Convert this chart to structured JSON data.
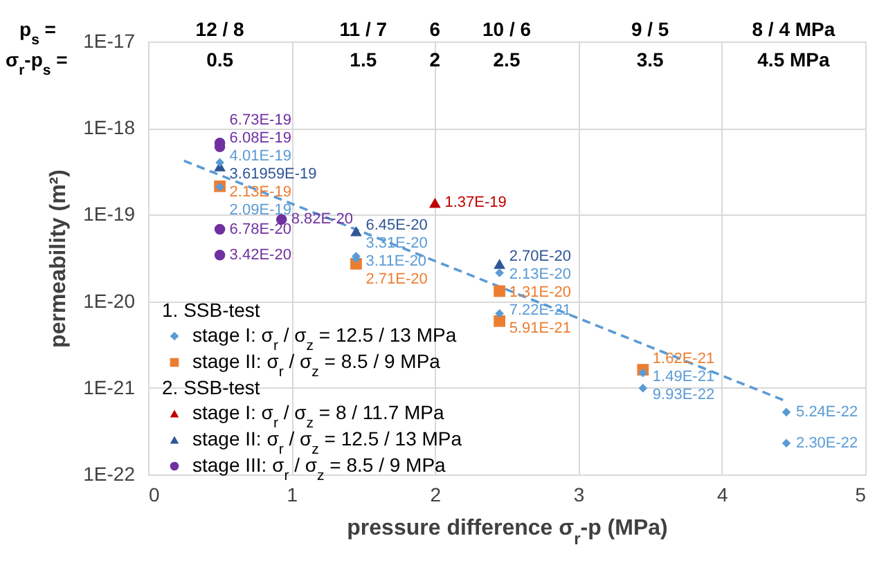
{
  "chart_data": {
    "type": "scatter",
    "xlabel": "pressure difference σ$_{r}$-p (MPa)",
    "ylabel": "permeability (m²)",
    "xlim": [
      0,
      5
    ],
    "xticks": [
      0,
      1,
      2,
      3,
      4,
      5
    ],
    "ylim": [
      1e-22,
      1e-17
    ],
    "yticks": [
      {
        "value": 1e-22,
        "label": "1E-22"
      },
      {
        "value": 1e-21,
        "label": "1E-21"
      },
      {
        "value": 1e-20,
        "label": "1E-20"
      },
      {
        "value": 1e-19,
        "label": "1E-19"
      },
      {
        "value": 1e-18,
        "label": "1E-18"
      },
      {
        "value": 1e-17,
        "label": "1E-17"
      }
    ],
    "log": "y",
    "grid": true,
    "legend": "bottom left",
    "annotations": [
      "p$_{s}$ =",
      "12 / 8",
      "11 / 7",
      "6",
      "10 / 6",
      "9 / 5",
      "8 / 4 MPa",
      "σ$_{r}$-p$_{s}$ =",
      "0.5",
      "1.5",
      "2",
      "2.5",
      "3.5",
      "4.5  MPa",
      "1. SSB-test",
      "2. SSB-test"
    ],
    "series": [
      {
        "name": "stage I:   σ$_{r}$ / σ$_{z}$ = 12.5 / 13 MPa",
        "color": "#5b9bd5",
        "marker": "diamond",
        "x": [
          0.5,
          0.5,
          1.45,
          1.45,
          2.45,
          2.45,
          3.45,
          3.45,
          4.45,
          4.45
        ],
        "values": [
          4.01e-19,
          2.09e-19,
          3.31e-20,
          3.11e-20,
          2.13e-20,
          7.22e-21,
          1.49e-21,
          9.93e-22,
          5.24e-22,
          2.3e-22
        ],
        "value_labels": [
          "4.01E-19",
          "2.09E-19",
          "3.31E-20",
          "3.11E-20",
          "2.13E-20",
          "7.22E-21",
          "1.49E-21",
          "9.93E-22",
          "5.24E-22",
          "2.30E-22"
        ]
      },
      {
        "name": "stage II:  σ$_{r}$ / σ$_{z}$ =   8.5 / 9   MPa",
        "color": "#ed7d31",
        "marker": "square",
        "x": [
          0.5,
          1.45,
          2.45,
          2.45,
          3.45
        ],
        "values": [
          2.13e-19,
          2.71e-20,
          1.31e-20,
          5.91e-21,
          1.62e-21
        ],
        "value_labels": [
          "2.13E-19",
          "2.71E-20",
          "1.31E-20",
          "5.91E-21",
          "1.62E-21"
        ]
      },
      {
        "name": "stage I:   σ$_{r}$ / σ$_{z}$ = 8 / 11.7     MPa",
        "color": "#c00000",
        "marker": "triangle",
        "x": [
          2
        ],
        "values": [
          1.37e-19
        ],
        "value_labels": [
          "1.37E-19"
        ]
      },
      {
        "name": "stage II:  σ$_{r}$ / σ$_{z}$ = 12.5 / 13  MPa",
        "color": "#2f5597",
        "marker": "triangle",
        "x": [
          0.5,
          1.45,
          2.45
        ],
        "values": [
          3.61959e-19,
          6.45e-20,
          2.7e-20
        ],
        "value_labels": [
          "3.61959E-19",
          "6.45E-20",
          "2.70E-20"
        ]
      },
      {
        "name": "stage III: σ$_{r}$ / σ$_{z}$ = 8.5 / 9       MPa",
        "color": "#7030a0",
        "marker": "circle",
        "x": [
          0.5,
          0.5,
          0.5,
          0.5,
          0.93
        ],
        "values": [
          6.73e-19,
          6.08e-19,
          6.78e-20,
          3.42e-20,
          8.82e-20
        ],
        "value_labels": [
          "6.73E-19",
          "6.08E-19",
          "6.78E-20",
          "3.42E-20",
          "8.82E-20"
        ]
      },
      {
        "type": "line",
        "color": "#5b9bd5",
        "line_style": "dashed",
        "marker": "none",
        "x": [
          0.25,
          4.45
        ],
        "values": [
          4.2e-19,
          7e-22
        ]
      }
    ]
  }
}
